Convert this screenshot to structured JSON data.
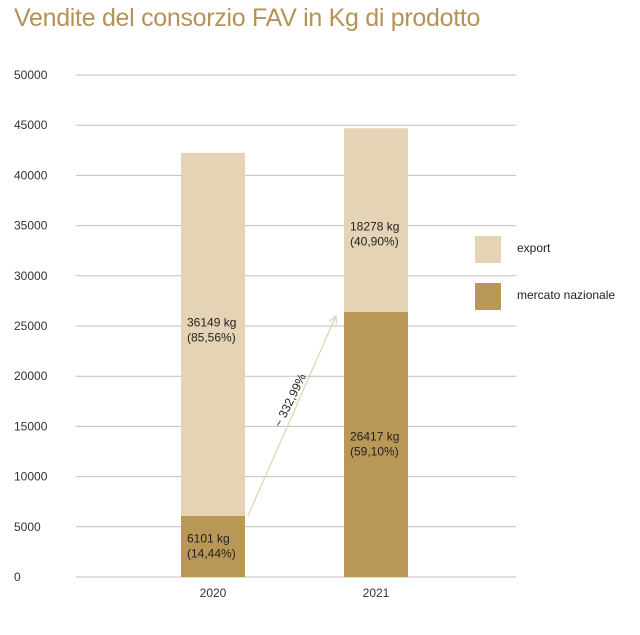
{
  "title": "Vendite del consorzio FAV in Kg di prodotto",
  "colors": {
    "export": "#e4d4b5",
    "mercato_nazionale": "#b99756",
    "grid": "#bfbfbf",
    "arrow": "#e4d4b5"
  },
  "chart_data": {
    "type": "bar",
    "stacked": true,
    "title": "Vendite del consorzio FAV in Kg di prodotto",
    "categories": [
      "2020",
      "2021"
    ],
    "series": [
      {
        "name": "mercato nazionale",
        "values": [
          6101,
          26417
        ],
        "labels": [
          [
            "6101 kg",
            "(14,44%)"
          ],
          [
            "26417 kg",
            "(59,10%)"
          ]
        ]
      },
      {
        "name": "export",
        "values": [
          36149,
          18278
        ],
        "labels": [
          [
            "36149 kg",
            "(85,56%)"
          ],
          [
            "18278 kg",
            "(40,90%)"
          ]
        ]
      }
    ],
    "ylim": [
      0,
      50000
    ],
    "yticks": [
      0,
      5000,
      10000,
      15000,
      20000,
      25000,
      30000,
      35000,
      40000,
      45000,
      50000
    ],
    "grid": true,
    "legend": {
      "position": "right",
      "entries": [
        "export",
        "mercato nazionale"
      ]
    },
    "annotation": "~ 332,99%"
  }
}
